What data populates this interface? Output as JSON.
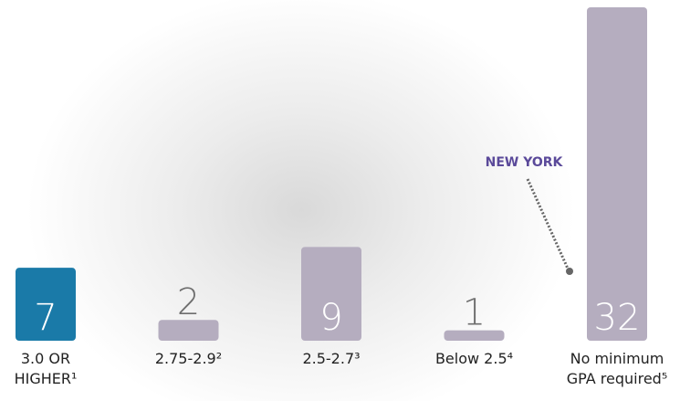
{
  "chart_data": {
    "type": "bar",
    "categories": [
      "3.0 OR HIGHER¹",
      "2.75-2.9²",
      "2.5-2.7³",
      "Below 2.5⁴",
      "No minimum GPA required⁵"
    ],
    "values": [
      7,
      2,
      9,
      1,
      32
    ],
    "colors": [
      "#1a7aa8",
      "#b5adbf",
      "#b5adbf",
      "#b5adbf",
      "#b5adbf"
    ],
    "annotation": "NEW YORK"
  }
}
